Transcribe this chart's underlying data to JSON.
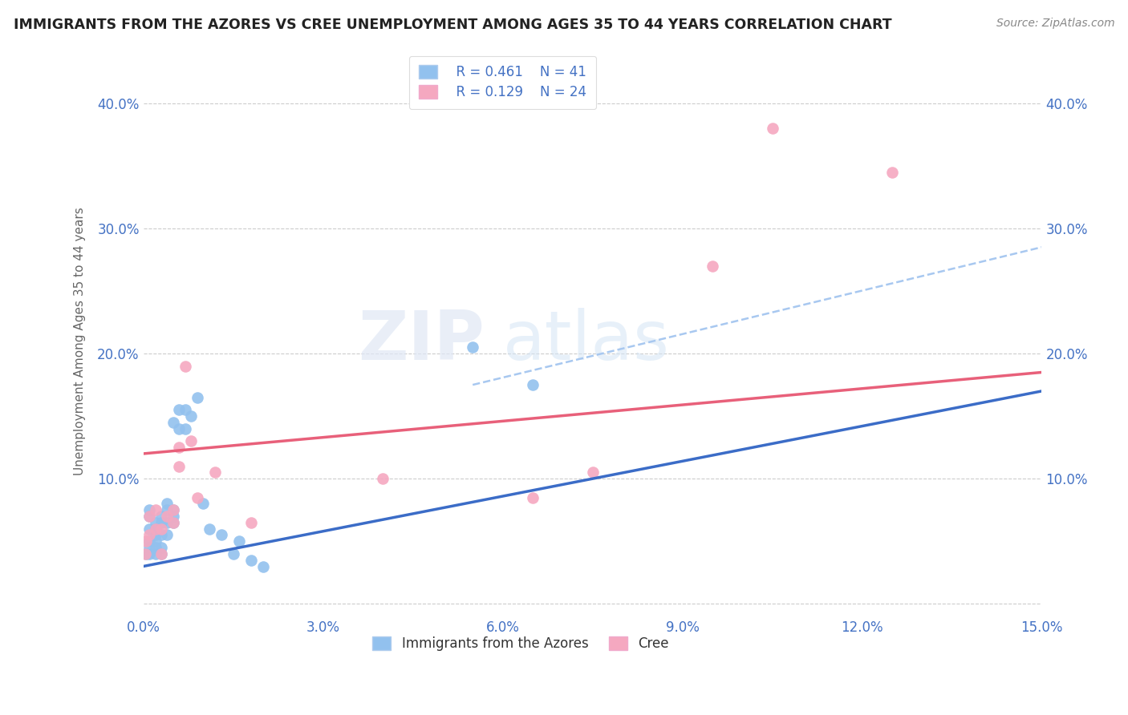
{
  "title": "IMMIGRANTS FROM THE AZORES VS CREE UNEMPLOYMENT AMONG AGES 35 TO 44 YEARS CORRELATION CHART",
  "source": "Source: ZipAtlas.com",
  "ylabel": "Unemployment Among Ages 35 to 44 years",
  "xlim": [
    0.0,
    0.15
  ],
  "ylim": [
    -0.01,
    0.43
  ],
  "legend_r1": "R = 0.461",
  "legend_n1": "N = 41",
  "legend_r2": "R = 0.129",
  "legend_n2": "N = 24",
  "blue_color": "#92C1EE",
  "pink_color": "#F5A8C0",
  "trend_blue": "#3B6CC7",
  "trend_pink": "#E8607A",
  "trend_blue_dash": "#A8C8F0",
  "grid_color": "#CCCCCC",
  "azores_x": [
    0.0005,
    0.001,
    0.001,
    0.001,
    0.001,
    0.001,
    0.001,
    0.002,
    0.002,
    0.002,
    0.002,
    0.002,
    0.002,
    0.003,
    0.003,
    0.003,
    0.003,
    0.003,
    0.004,
    0.004,
    0.004,
    0.004,
    0.005,
    0.005,
    0.005,
    0.005,
    0.006,
    0.006,
    0.007,
    0.007,
    0.008,
    0.009,
    0.01,
    0.011,
    0.013,
    0.015,
    0.016,
    0.018,
    0.02,
    0.055,
    0.065
  ],
  "azores_y": [
    0.04,
    0.04,
    0.045,
    0.05,
    0.06,
    0.07,
    0.075,
    0.04,
    0.045,
    0.05,
    0.055,
    0.06,
    0.065,
    0.04,
    0.045,
    0.055,
    0.065,
    0.07,
    0.055,
    0.065,
    0.075,
    0.08,
    0.065,
    0.07,
    0.075,
    0.145,
    0.14,
    0.155,
    0.14,
    0.155,
    0.15,
    0.165,
    0.08,
    0.06,
    0.055,
    0.04,
    0.05,
    0.035,
    0.03,
    0.205,
    0.175
  ],
  "cree_x": [
    0.0003,
    0.0005,
    0.001,
    0.001,
    0.002,
    0.002,
    0.003,
    0.003,
    0.004,
    0.005,
    0.005,
    0.006,
    0.006,
    0.007,
    0.008,
    0.009,
    0.012,
    0.018,
    0.04,
    0.065,
    0.075,
    0.095,
    0.105,
    0.125
  ],
  "cree_y": [
    0.04,
    0.05,
    0.055,
    0.07,
    0.06,
    0.075,
    0.04,
    0.06,
    0.07,
    0.065,
    0.075,
    0.11,
    0.125,
    0.19,
    0.13,
    0.085,
    0.105,
    0.065,
    0.1,
    0.085,
    0.105,
    0.27,
    0.38,
    0.345
  ],
  "blue_line_x0": 0.0,
  "blue_line_y0": 0.03,
  "blue_line_x1": 0.15,
  "blue_line_y1": 0.17,
  "pink_line_x0": 0.0,
  "pink_line_y0": 0.12,
  "pink_line_x1": 0.15,
  "pink_line_y1": 0.185,
  "dash_line_x0": 0.055,
  "dash_line_y0": 0.175,
  "dash_line_x1": 0.15,
  "dash_line_y1": 0.285
}
